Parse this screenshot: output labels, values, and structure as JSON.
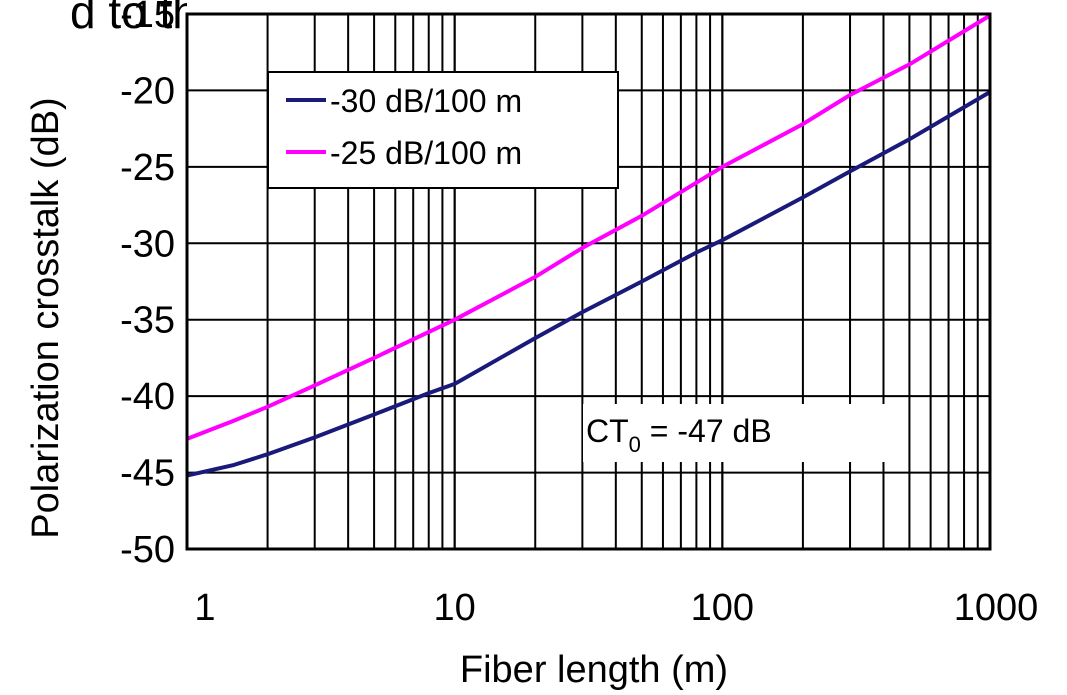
{
  "top_cut_text": "d to the orthogonal mode in unit",
  "chart_data": {
    "type": "line",
    "xlabel": "Fiber length (m)",
    "ylabel": "Polarization crosstalk (dB)",
    "x_scale": "log",
    "xlim": [
      1,
      1000
    ],
    "ylim": [
      -50,
      -15
    ],
    "x_ticks": [
      1,
      10,
      100,
      1000
    ],
    "x_tick_labels": [
      "1",
      "10",
      "100",
      "1000"
    ],
    "y_ticks": [
      -50,
      -45,
      -40,
      -35,
      -30,
      -25,
      -20,
      -15
    ],
    "y_tick_labels": [
      "-50",
      "-45",
      "-40",
      "-35",
      "-30",
      "-25",
      "-20",
      "-15"
    ],
    "grid": true,
    "legend_position": "top-left",
    "annotation": {
      "base": "CT",
      "subscript": "0",
      "rest": " = -47 dB"
    },
    "series": [
      {
        "name": "-30 dB/100 m",
        "color": "#1a1a7a",
        "x": [
          1,
          1.5,
          2,
          3,
          5,
          8,
          10,
          20,
          30,
          50,
          80,
          100,
          200,
          300,
          500,
          1000
        ],
        "y": [
          -45.2,
          -44.5,
          -43.8,
          -42.7,
          -41.2,
          -39.8,
          -39.2,
          -36.2,
          -34.5,
          -32.5,
          -30.6,
          -29.8,
          -27.0,
          -25.3,
          -23.2,
          -20.1
        ]
      },
      {
        "name": "-25 dB/100 m",
        "color": "#ff00ff",
        "x": [
          1,
          1.5,
          2,
          3,
          5,
          10,
          20,
          30,
          50,
          100,
          200,
          300,
          500,
          1000
        ],
        "y": [
          -42.8,
          -41.6,
          -40.7,
          -39.3,
          -37.5,
          -35.0,
          -32.2,
          -30.3,
          -28.2,
          -25.0,
          -22.2,
          -20.3,
          -18.3,
          -15.1
        ]
      }
    ]
  }
}
